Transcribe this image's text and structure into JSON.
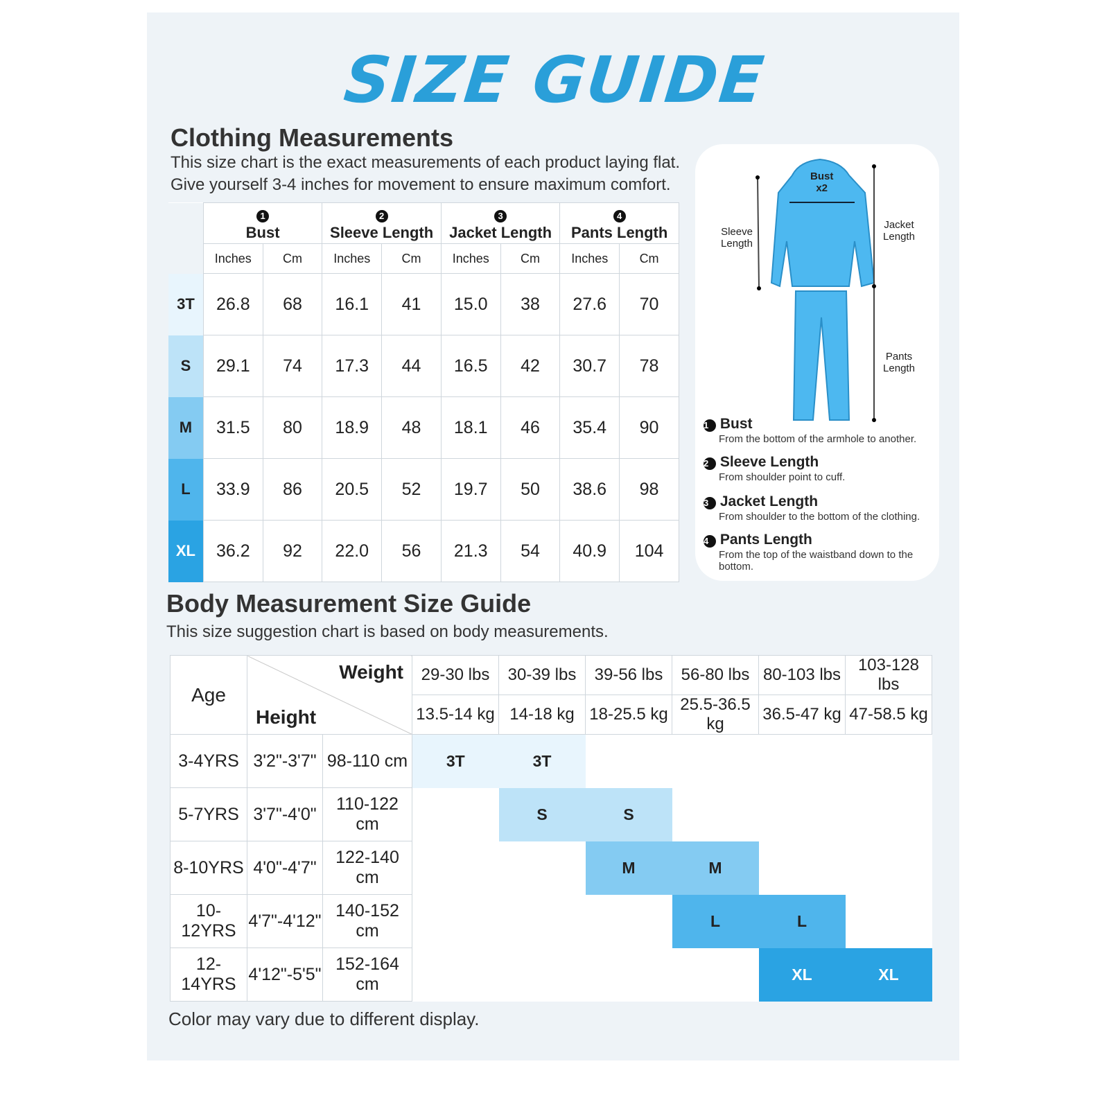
{
  "title": "SIZE GUIDE",
  "clothing": {
    "heading": "Clothing Measurements",
    "desc1": "This size chart is the exact measurements of each product laying flat.",
    "desc2": "Give yourself 3-4 inches for movement to ensure maximum comfort.",
    "groups": [
      {
        "n": "1",
        "label": "Bust"
      },
      {
        "n": "2",
        "label": "Sleeve Length"
      },
      {
        "n": "3",
        "label": "Jacket Length"
      },
      {
        "n": "4",
        "label": "Pants Length"
      }
    ],
    "units": [
      "Inches",
      "Cm",
      "Inches",
      "Cm",
      "Inches",
      "Cm",
      "Inches",
      "Cm"
    ],
    "rows": [
      {
        "size": "3T",
        "color": "#e8f5fd",
        "text": "#222",
        "values": [
          "26.8",
          "68",
          "16.1",
          "41",
          "15.0",
          "38",
          "27.6",
          "70"
        ]
      },
      {
        "size": "S",
        "color": "#bde3f8",
        "text": "#222",
        "values": [
          "29.1",
          "74",
          "17.3",
          "44",
          "16.5",
          "42",
          "30.7",
          "78"
        ]
      },
      {
        "size": "M",
        "color": "#84cbf2",
        "text": "#222",
        "values": [
          "31.5",
          "80",
          "18.9",
          "48",
          "18.1",
          "46",
          "35.4",
          "90"
        ]
      },
      {
        "size": "L",
        "color": "#4fb5ec",
        "text": "#222",
        "values": [
          "33.9",
          "86",
          "20.5",
          "52",
          "19.7",
          "50",
          "38.6",
          "98"
        ]
      },
      {
        "size": "XL",
        "color": "#2aa3e3",
        "text": "#fff",
        "values": [
          "36.2",
          "92",
          "22.0",
          "56",
          "21.3",
          "54",
          "40.9",
          "104"
        ]
      }
    ]
  },
  "diagram": {
    "bust": "Bust",
    "x2": "x2",
    "sleeve": "Sleeve Length",
    "jacket": "Jacket Length",
    "pants": "Pants Length",
    "legend": [
      {
        "n": "1",
        "title": "Bust",
        "desc": "From the bottom of the armhole to another."
      },
      {
        "n": "2",
        "title": "Sleeve Length",
        "desc": "From shoulder point to cuff."
      },
      {
        "n": "3",
        "title": "Jacket Length",
        "desc": "From shoulder to the bottom of the clothing."
      },
      {
        "n": "4",
        "title": "Pants Length",
        "desc": "From the top of the waistband down to the bottom."
      }
    ]
  },
  "body": {
    "heading": "Body Measurement Size Guide",
    "desc": "This size suggestion chart is based on body measurements.",
    "age_label": "Age",
    "weight_label": "Weight",
    "height_label": "Height",
    "lbs": [
      "29-30 lbs",
      "30-39 lbs",
      "39-56 lbs",
      "56-80 lbs",
      "80-103 lbs",
      "103-128 lbs"
    ],
    "kg": [
      "13.5-14 kg",
      "14-18 kg",
      "18-25.5 kg",
      "25.5-36.5 kg",
      "36.5-47 kg",
      "47-58.5 kg"
    ],
    "rows": [
      {
        "age": "3-4YRS",
        "ft": "3'2\"-3'7\"",
        "cm": "98-110 cm",
        "size": "3T",
        "start": 0
      },
      {
        "age": "5-7YRS",
        "ft": "3'7\"-4'0\"",
        "cm": "110-122 cm",
        "size": "S",
        "start": 1
      },
      {
        "age": "8-10YRS",
        "ft": "4'0\"-4'7\"",
        "cm": "122-140 cm",
        "size": "M",
        "start": 2
      },
      {
        "age": "10-12YRS",
        "ft": "4'7\"-4'12\"",
        "cm": "140-152 cm",
        "size": "L",
        "start": 3
      },
      {
        "age": "12-14YRS",
        "ft": "4'12\"-5'5\"",
        "cm": "152-164 cm",
        "size": "XL",
        "start": 4
      }
    ]
  },
  "footer": "Color may vary due to different display.",
  "colors": {
    "accent": "#2a9fd9",
    "garment": "#4db8f0"
  }
}
